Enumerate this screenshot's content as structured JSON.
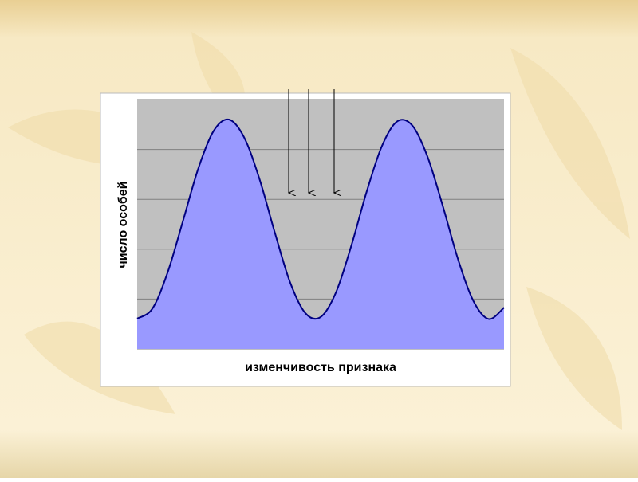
{
  "chart_data": {
    "type": "area",
    "x_label": "изменчивость признака",
    "y_label": "число особей",
    "values": [
      0.61,
      0.81,
      1.54,
      2.57,
      3.62,
      4.37,
      4.6,
      4.24,
      3.41,
      2.34,
      1.34,
      0.72,
      0.64,
      1.13,
      2.06,
      3.14,
      4.06,
      4.56,
      4.48,
      3.85,
      2.86,
      1.79,
      0.96,
      0.6,
      0.83
    ],
    "color": "#9999ff",
    "line_color": "#000080",
    "ylim": [
      0,
      5
    ],
    "yticks": [
      0,
      1,
      2,
      3,
      4,
      5
    ],
    "grid": true
  }
}
